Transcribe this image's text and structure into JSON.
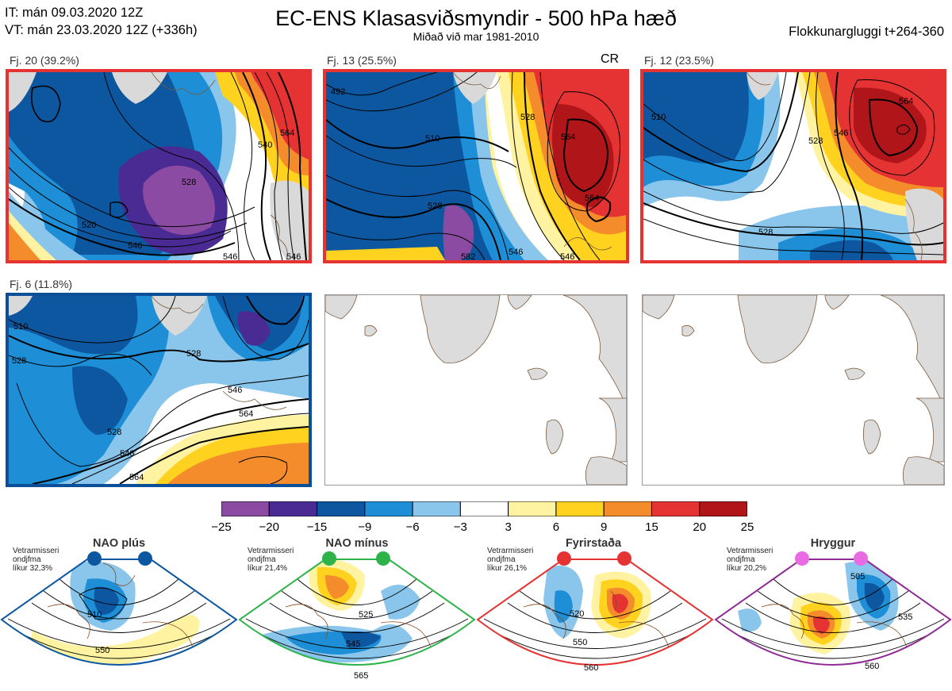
{
  "header": {
    "it_line": "IT: mán 09.03.2020 12Z",
    "vt_line": "VT: mán 23.03.2020 12Z  (+336h)",
    "title": "EC-ENS Klasasviðsmyndir - 500 hPa hæð",
    "subtitle": "Miðað við mar 1981-2010",
    "window": "Flokkunargluggi t+264-360"
  },
  "clusters": [
    {
      "label": "Fj. 20 (39.2%)",
      "frame_color": "#e53232",
      "badge": "",
      "contours": [
        "528",
        "546",
        "520",
        "546",
        "546",
        "540",
        "564"
      ]
    },
    {
      "label": "Fj. 13 (25.5%)",
      "frame_color": "#e53232",
      "badge": "CR",
      "contours": [
        "492",
        "510",
        "528",
        "528",
        "546",
        "546",
        "564",
        "564",
        "582"
      ]
    },
    {
      "label": "Fj. 12 (23.5%)",
      "frame_color": "#e53232",
      "badge": "",
      "contours": [
        "510",
        "528",
        "528",
        "546",
        "564"
      ]
    },
    {
      "label": "Fj. 6 (11.8%)",
      "frame_color": "#0b4f99",
      "badge": "",
      "contours": [
        "510",
        "528",
        "528",
        "546",
        "564",
        "528",
        "546",
        "564"
      ]
    }
  ],
  "colorbar": {
    "ticks": [
      "−25",
      "−20",
      "−15",
      "−9",
      "−6",
      "−3",
      "3",
      "6",
      "9",
      "15",
      "20",
      "25"
    ],
    "colors": [
      "#8c4ba3",
      "#4a2b94",
      "#0d57a0",
      "#1e8fd6",
      "#8ac6ec",
      "#ffffff",
      "#fff3a1",
      "#ffd21f",
      "#f48c2b",
      "#e53232",
      "#b01519"
    ]
  },
  "regimes": [
    {
      "title": "NAO plús",
      "note": [
        "Vetrarmisseri",
        "ondjfma",
        "líkur 32,3%"
      ],
      "color": "#0d57a0",
      "contours": [
        "510",
        "550"
      ]
    },
    {
      "title": "NAO mínus",
      "note": [
        "Vetrarmisseri",
        "ondjfma",
        "líkur 21,4%"
      ],
      "color": "#2db34a",
      "contours": [
        "525",
        "545",
        "565"
      ]
    },
    {
      "title": "Fyrirstaða",
      "note": [
        "Vetrarmisseri",
        "ondjfma",
        "líkur 26,1%"
      ],
      "color": "#e53232",
      "contours": [
        "520",
        "550",
        "560"
      ]
    },
    {
      "title": "Hryggur",
      "note": [
        "Vetrarmisseri",
        "ondjfma",
        "líkur 20,2%"
      ],
      "color": "#e96be4",
      "contours": [
        "505",
        "535",
        "560"
      ]
    }
  ]
}
